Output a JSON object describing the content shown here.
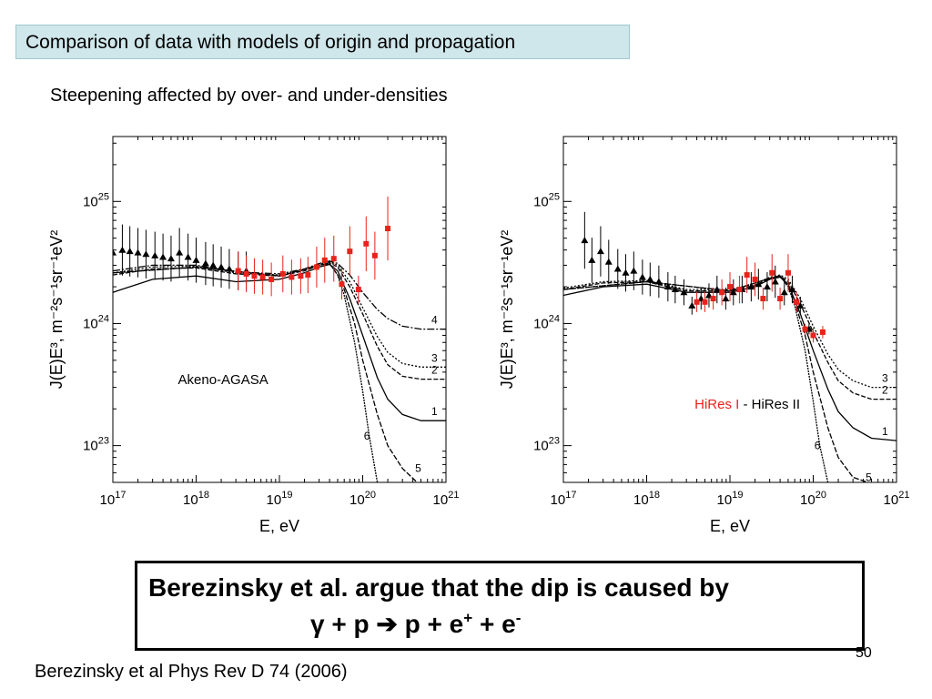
{
  "header": {
    "title": "Comparison of data with models of origin and propagation"
  },
  "subtitle": "Steepening affected by over- and under-densities",
  "caption": {
    "line1": "Berezinsky et al. argue that the dip is caused by",
    "gamma": "γ",
    "plus1": "+",
    "p1": "p",
    "arrow": "➔",
    "p2": "p",
    "plus2": "+",
    "e1": "e",
    "e1_sup": "+",
    "plus3": "+",
    "e2": "e",
    "e2_sup": "-"
  },
  "citation": "Berezinsky et al Phys Rev D 74 (2006)",
  "slide_number": "50",
  "colors": {
    "header_bg": "#cfe6ea",
    "red_points": "#e8231b",
    "black_points": "#000000"
  },
  "chart_data": [
    {
      "type": "line",
      "annotation": "Akeno-AGASA",
      "xlabel": "E, eV",
      "ylabel": "J(E)E³, m⁻²s⁻¹sr⁻¹eV²",
      "x_scale": "log",
      "y_scale": "log",
      "xlim": [
        1e+17,
        1e+21
      ],
      "ylim": [
        5e+22,
        3.4e+25
      ],
      "x_ticks": [
        {
          "value": 1e+17,
          "base": "10",
          "exp": "17"
        },
        {
          "value": 1e+18,
          "base": "10",
          "exp": "18"
        },
        {
          "value": 1e+19,
          "base": "10",
          "exp": "19"
        },
        {
          "value": 1e+20,
          "base": "10",
          "exp": "20"
        },
        {
          "value": 1e+21,
          "base": "10",
          "exp": "21"
        }
      ],
      "y_ticks": [
        {
          "value": 1e+23,
          "base": "10",
          "exp": "23"
        },
        {
          "value": 1e+24,
          "base": "10",
          "exp": "24"
        },
        {
          "value": 1e+25,
          "base": "10",
          "exp": "25"
        }
      ],
      "series": [
        {
          "name": "1",
          "x": [
            1e+17,
            3e+17,
            1e+18,
            3e+18,
            1e+19,
            2e+19,
            3e+19,
            4e+19,
            5e+19,
            7e+19,
            1e+20,
            1.5e+20,
            2e+20,
            3e+20,
            5e+20,
            1e+21
          ],
          "y": [
            1.8e+24,
            2.3e+24,
            2.45e+24,
            2.2e+24,
            2.3e+24,
            2.6e+24,
            2.9e+24,
            3.05e+24,
            2.7e+24,
            1.6e+24,
            8e+23,
            3.6e+23,
            2.4e+23,
            1.8e+23,
            1.6e+23,
            1.6e+23
          ]
        },
        {
          "name": "2",
          "x": [
            1e+17,
            3e+17,
            1e+18,
            3e+18,
            1e+19,
            2e+19,
            3e+19,
            4e+19,
            5e+19,
            7e+19,
            1e+20,
            1.5e+20,
            2e+20,
            3e+20,
            5e+20,
            1e+21
          ],
          "y": [
            2.5e+24,
            2.8e+24,
            2.85e+24,
            2.55e+24,
            2.45e+24,
            2.7e+24,
            3e+24,
            3.15e+24,
            2.9e+24,
            2e+24,
            1.2e+24,
            6.5e+23,
            4.6e+23,
            3.7e+23,
            3.5e+23,
            3.5e+23
          ]
        },
        {
          "name": "3",
          "x": [
            1e+17,
            3e+17,
            1e+18,
            3e+18,
            1e+19,
            2e+19,
            3e+19,
            4e+19,
            5e+19,
            7e+19,
            1e+20,
            1.5e+20,
            2e+20,
            3e+20,
            5e+20,
            1e+21
          ],
          "y": [
            2.6e+24,
            2.9e+24,
            2.95e+24,
            2.6e+24,
            2.5e+24,
            2.75e+24,
            3.05e+24,
            3.2e+24,
            3e+24,
            2.2e+24,
            1.35e+24,
            7.8e+23,
            5.8e+23,
            4.7e+23,
            4.4e+23,
            4.4e+23
          ]
        },
        {
          "name": "4",
          "x": [
            1e+17,
            3e+17,
            1e+18,
            3e+18,
            1e+19,
            2e+19,
            3e+19,
            4e+19,
            5e+19,
            7e+19,
            1e+20,
            1.5e+20,
            2e+20,
            3e+20,
            5e+20,
            1e+21
          ],
          "y": [
            2.7e+24,
            3e+24,
            3e+24,
            2.65e+24,
            2.55e+24,
            2.8e+24,
            3.1e+24,
            3.25e+24,
            3.1e+24,
            2.5e+24,
            1.8e+24,
            1.3e+24,
            1.1e+24,
            9.5e+23,
            9e+23,
            9e+23
          ]
        },
        {
          "name": "5",
          "x": [
            1e+17,
            1e+18,
            1e+19,
            3e+19,
            4e+19,
            5e+19,
            6e+19,
            8e+19,
            1e+20,
            1.5e+20,
            2e+20,
            3e+20,
            4.5e+20
          ],
          "y": [
            2.6e+24,
            2.9e+24,
            2.45e+24,
            3e+24,
            3.1e+24,
            2.5e+24,
            1.9e+24,
            1e+24,
            5e+23,
            1.8e+23,
            1e+23,
            6.5e+22,
            5e+22
          ]
        },
        {
          "name": "6",
          "x": [
            1e+17,
            1e+18,
            1e+19,
            3e+19,
            4e+19,
            5e+19,
            6e+19,
            8e+19,
            1e+20,
            1.2e+20,
            1.5e+20
          ],
          "y": [
            2.6e+24,
            2.9e+24,
            2.45e+24,
            3e+24,
            3.1e+24,
            2.5e+24,
            1.7e+24,
            7e+23,
            2.8e+23,
            1.2e+23,
            5e+22
          ]
        }
      ],
      "points": [
        {
          "name": "Akeno",
          "color": "#000000",
          "marker": "triangle",
          "x": [
            1e+17,
            1.3e+17,
            1.6e+17,
            2e+17,
            2.5e+17,
            3.2e+17,
            4e+17,
            5e+17,
            6.3e+17,
            8e+17,
            1e+18,
            1.3e+18,
            1.6e+18,
            2e+18,
            2.5e+18,
            3.2e+18,
            4e+18
          ],
          "y": [
            3.8e+24,
            4e+24,
            3.9e+24,
            3.8e+24,
            3.7e+24,
            3.6e+24,
            3.5e+24,
            3.4e+24,
            3.8e+24,
            3.5e+24,
            3.3e+24,
            3.1e+24,
            3e+24,
            2.9e+24,
            2.8e+24,
            2.7e+24,
            2.7e+24
          ]
        },
        {
          "name": "AGASA",
          "color": "#e8231b",
          "marker": "square",
          "x": [
            3.2e+18,
            4e+18,
            5e+18,
            6.3e+18,
            8e+18,
            1.1e+19,
            1.4e+19,
            1.8e+19,
            2.2e+19,
            2.8e+19,
            3.5e+19,
            4.5e+19,
            5.6e+19,
            7e+19,
            8.9e+19,
            1.1e+20,
            1.4e+20,
            2e+20
          ],
          "y": [
            2.7e+24,
            2.55e+24,
            2.45e+24,
            2.4e+24,
            2.3e+24,
            2.55e+24,
            2.4e+24,
            2.45e+24,
            2.5e+24,
            2.9e+24,
            3.3e+24,
            3.4e+24,
            2.1e+24,
            3.9e+24,
            1.9e+24,
            4.5e+24,
            3.6e+24,
            6e+24
          ]
        }
      ]
    },
    {
      "type": "line",
      "annotation_red": "HiRes I",
      "annotation_black": "- HiRes II",
      "xlabel": "E, eV",
      "ylabel": "J(E)E³, m⁻²s⁻¹sr⁻¹eV²",
      "x_scale": "log",
      "y_scale": "log",
      "xlim": [
        1e+17,
        1e+21
      ],
      "ylim": [
        5e+22,
        3.4e+25
      ],
      "x_ticks": [
        {
          "value": 1e+17,
          "base": "10",
          "exp": "17"
        },
        {
          "value": 1e+18,
          "base": "10",
          "exp": "18"
        },
        {
          "value": 1e+19,
          "base": "10",
          "exp": "19"
        },
        {
          "value": 1e+20,
          "base": "10",
          "exp": "20"
        },
        {
          "value": 1e+21,
          "base": "10",
          "exp": "21"
        }
      ],
      "y_ticks": [
        {
          "value": 1e+23,
          "base": "10",
          "exp": "23"
        },
        {
          "value": 1e+24,
          "base": "10",
          "exp": "24"
        },
        {
          "value": 1e+25,
          "base": "10",
          "exp": "25"
        }
      ],
      "series": [
        {
          "name": "1",
          "x": [
            1e+17,
            3e+17,
            1e+18,
            3e+18,
            1e+19,
            2e+19,
            3e+19,
            4e+19,
            5e+19,
            7e+19,
            1e+20,
            1.5e+20,
            2e+20,
            3e+20,
            5e+20,
            1e+21
          ],
          "y": [
            1.7e+24,
            2e+24,
            2.1e+24,
            1.8e+24,
            1.8e+24,
            2e+24,
            2.3e+24,
            2.4e+24,
            2.1e+24,
            1.2e+24,
            6e+23,
            2.9e+23,
            1.9e+23,
            1.4e+23,
            1.15e+23,
            1.1e+23
          ]
        },
        {
          "name": "2",
          "x": [
            1e+17,
            3e+17,
            1e+18,
            3e+18,
            1e+19,
            2e+19,
            3e+19,
            4e+19,
            5e+19,
            7e+19,
            1e+20,
            1.5e+20,
            2e+20,
            3e+20,
            5e+20,
            1e+21
          ],
          "y": [
            1.9e+24,
            2.15e+24,
            2.2e+24,
            1.85e+24,
            1.85e+24,
            2.05e+24,
            2.35e+24,
            2.45e+24,
            2.2e+24,
            1.45e+24,
            8.5e+23,
            4.8e+23,
            3.4e+23,
            2.7e+23,
            2.4e+23,
            2.4e+23
          ]
        },
        {
          "name": "3",
          "x": [
            1e+17,
            3e+17,
            1e+18,
            3e+18,
            1e+19,
            2e+19,
            3e+19,
            4e+19,
            5e+19,
            7e+19,
            1e+20,
            1.5e+20,
            2e+20,
            3e+20,
            5e+20,
            1e+21
          ],
          "y": [
            1.95e+24,
            2.2e+24,
            2.25e+24,
            1.9e+24,
            1.9e+24,
            2.1e+24,
            2.4e+24,
            2.5e+24,
            2.3e+24,
            1.6e+24,
            9.5e+23,
            5.6e+23,
            4.2e+23,
            3.4e+23,
            3e+23,
            3e+23
          ]
        },
        {
          "name": "5",
          "x": [
            1e+17,
            1e+18,
            1e+19,
            3e+19,
            4e+19,
            5e+19,
            6e+19,
            8e+19,
            1e+20,
            1.5e+20,
            2e+20,
            3e+20,
            4.5e+20
          ],
          "y": [
            1.9e+24,
            2.2e+24,
            1.85e+24,
            2.35e+24,
            2.45e+24,
            2e+24,
            1.5e+24,
            8e+23,
            4e+23,
            1.4e+23,
            8e+22,
            5.5e+22,
            5e+22
          ]
        },
        {
          "name": "6",
          "x": [
            1e+17,
            1e+18,
            1e+19,
            3e+19,
            4e+19,
            5e+19,
            6e+19,
            8e+19,
            1e+20,
            1.2e+20,
            1.5e+20
          ],
          "y": [
            1.9e+24,
            2.2e+24,
            1.85e+24,
            2.35e+24,
            2.45e+24,
            2e+24,
            1.4e+24,
            6e+23,
            2.3e+23,
            1e+23,
            5e+22
          ]
        }
      ],
      "points": [
        {
          "name": "HiRes II",
          "color": "#000000",
          "marker": "triangle",
          "x": [
            1.8e+17,
            2.2e+17,
            2.8e+17,
            3.5e+17,
            4.5e+17,
            5.6e+17,
            7e+17,
            8.9e+17,
            1.1e+18,
            1.4e+18,
            1.8e+18,
            2.2e+18,
            2.8e+18,
            3.5e+18,
            4.5e+18,
            5.6e+18,
            7e+18,
            8.9e+18,
            1.1e+19,
            1.4e+19,
            1.8e+19,
            2.2e+19,
            2.8e+19,
            3.5e+19,
            4.5e+19,
            5.6e+19,
            7e+19,
            8.9e+19
          ],
          "y": [
            4.8e+24,
            3.3e+24,
            3.9e+24,
            3.2e+24,
            2.8e+24,
            2.6e+24,
            2.7e+24,
            2.4e+24,
            2.3e+24,
            2.2e+24,
            2e+24,
            1.9e+24,
            1.8e+24,
            1.4e+24,
            1.6e+24,
            1.7e+24,
            1.9e+24,
            1.6e+24,
            1.8e+24,
            1.9e+24,
            2e+24,
            2.1e+24,
            2e+24,
            2.2e+24,
            1.8e+24,
            1.9e+24,
            1.4e+24,
            9e+23
          ]
        },
        {
          "name": "HiRes I",
          "color": "#e8231b",
          "marker": "square",
          "x": [
            4e+18,
            5e+18,
            6.3e+18,
            8e+18,
            1e+19,
            1.3e+19,
            1.6e+19,
            2e+19,
            2.5e+19,
            3.2e+19,
            4e+19,
            5e+19,
            6.3e+19,
            8e+19,
            1e+20,
            1.3e+20
          ],
          "y": [
            1.5e+24,
            1.5e+24,
            1.6e+24,
            1.8e+24,
            2e+24,
            1.9e+24,
            2.5e+24,
            2.3e+24,
            1.6e+24,
            2.6e+24,
            1.6e+24,
            2.6e+24,
            1.5e+24,
            9e+23,
            8e+23,
            8.5e+23
          ]
        }
      ]
    }
  ]
}
